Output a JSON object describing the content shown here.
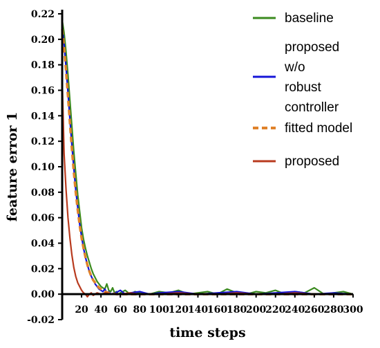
{
  "chart_data": {
    "type": "line",
    "xlabel": "time steps",
    "ylabel": "feature error 1",
    "xlim": [
      0,
      300
    ],
    "ylim": [
      -0.02,
      0.22
    ],
    "x_ticks": [
      20,
      40,
      60,
      80,
      100,
      120,
      140,
      160,
      180,
      200,
      220,
      240,
      260,
      280,
      300
    ],
    "x_tick_labels": [
      "20",
      "40",
      "60",
      "80",
      "100",
      "120",
      "140",
      "160",
      "180",
      "200",
      "220",
      "240",
      "260",
      "280",
      "300"
    ],
    "y_ticks": [
      -0.02,
      0.0,
      0.02,
      0.04,
      0.06,
      0.08,
      0.1,
      0.12,
      0.14,
      0.16,
      0.18,
      0.2,
      0.22
    ],
    "y_tick_labels": [
      "-0.02",
      "0.00",
      "0.02",
      "0.04",
      "0.06",
      "0.08",
      "0.10",
      "0.12",
      "0.14",
      "0.16",
      "0.18",
      "0.20",
      "0.22"
    ],
    "grid": false,
    "legend_position": "right",
    "series": [
      {
        "name": "baseline",
        "color": "#3a8a1e",
        "style": "solid",
        "x": [
          0,
          2,
          4,
          6,
          8,
          10,
          12,
          14,
          16,
          18,
          20,
          22,
          24,
          26,
          28,
          30,
          32,
          34,
          36,
          38,
          40,
          42,
          44,
          46,
          48,
          50,
          52,
          54,
          56,
          58,
          60,
          65,
          70,
          75,
          80,
          90,
          100,
          110,
          120,
          130,
          140,
          150,
          160,
          170,
          180,
          190,
          200,
          210,
          220,
          230,
          240,
          250,
          260,
          270,
          280,
          290,
          300
        ],
        "values": [
          0.215,
          0.205,
          0.19,
          0.172,
          0.152,
          0.132,
          0.112,
          0.095,
          0.078,
          0.065,
          0.052,
          0.043,
          0.036,
          0.03,
          0.025,
          0.02,
          0.016,
          0.013,
          0.01,
          0.008,
          0.006,
          0.005,
          0.004,
          0.008,
          0.003,
          0.002,
          0.005,
          0.001,
          0.002,
          0.0,
          0.001,
          0.003,
          0.0,
          0.002,
          0.001,
          0.0,
          0.002,
          0.001,
          0.003,
          0.0,
          0.001,
          0.002,
          0.0,
          0.004,
          0.001,
          0.0,
          0.002,
          0.001,
          0.003,
          0.0,
          0.002,
          0.001,
          0.005,
          0.0,
          0.001,
          0.002,
          0.0
        ]
      },
      {
        "name": "proposed w/o robust controller",
        "color": "#1515d8",
        "style": "solid",
        "x": [
          0,
          2,
          4,
          6,
          8,
          10,
          12,
          14,
          16,
          18,
          20,
          22,
          24,
          26,
          28,
          30,
          32,
          34,
          36,
          38,
          40,
          42,
          44,
          46,
          48,
          50,
          55,
          60,
          65,
          70,
          80,
          90,
          100,
          120,
          140,
          160,
          180,
          200,
          220,
          240,
          260,
          280,
          300
        ],
        "values": [
          0.21,
          0.196,
          0.178,
          0.158,
          0.137,
          0.117,
          0.099,
          0.082,
          0.068,
          0.055,
          0.045,
          0.036,
          0.029,
          0.023,
          0.018,
          0.014,
          0.011,
          0.008,
          0.006,
          0.004,
          0.003,
          0.002,
          0.004,
          0.001,
          0.002,
          0.0,
          0.001,
          0.003,
          0.0,
          0.001,
          0.002,
          0.0,
          0.001,
          0.002,
          0.0,
          0.001,
          0.002,
          0.0,
          0.001,
          0.002,
          0.0,
          0.001,
          0.0
        ]
      },
      {
        "name": "fitted model",
        "color": "#e0822a",
        "style": "dashed",
        "x": [
          0,
          2,
          4,
          6,
          8,
          10,
          12,
          14,
          16,
          18,
          20,
          22,
          24,
          26,
          28,
          30,
          32,
          34,
          36,
          38,
          40,
          44,
          48,
          52,
          56,
          60,
          70,
          80,
          100,
          120,
          150,
          200,
          250,
          300
        ],
        "values": [
          0.208,
          0.193,
          0.175,
          0.155,
          0.134,
          0.114,
          0.096,
          0.08,
          0.066,
          0.054,
          0.044,
          0.036,
          0.029,
          0.023,
          0.018,
          0.014,
          0.011,
          0.009,
          0.007,
          0.005,
          0.004,
          0.002,
          0.001,
          0.0005,
          0.0,
          0.0,
          0.0,
          0.0,
          0.0,
          0.0,
          0.0,
          0.0,
          0.0,
          0.0
        ]
      },
      {
        "name": "proposed",
        "color": "#b83a1e",
        "style": "solid",
        "x": [
          0,
          2,
          4,
          6,
          8,
          10,
          12,
          14,
          16,
          18,
          20,
          22,
          24,
          26,
          28,
          30,
          32,
          34,
          36,
          40,
          45,
          50,
          60,
          70,
          80,
          100,
          120,
          140,
          160,
          180,
          200,
          220,
          240,
          260,
          280,
          300
        ],
        "values": [
          0.17,
          0.11,
          0.082,
          0.06,
          0.044,
          0.031,
          0.021,
          0.014,
          0.009,
          0.006,
          0.003,
          0.001,
          0.0,
          -0.002,
          0.0,
          0.001,
          -0.001,
          0.0,
          0.001,
          0.0,
          0.001,
          0.0,
          0.0,
          0.001,
          0.0,
          0.0,
          0.001,
          0.0,
          0.0,
          0.001,
          0.0,
          0.0,
          0.001,
          0.0,
          0.0,
          0.0
        ]
      }
    ]
  },
  "legend": {
    "items": [
      {
        "lines": [
          "baseline"
        ],
        "color": "#3a8a1e",
        "style": "solid"
      },
      {
        "lines": [
          "proposed",
          "w/o",
          "robust",
          "controller"
        ],
        "color": "#1515d8",
        "style": "solid"
      },
      {
        "lines": [
          "fitted model"
        ],
        "color": "#e0822a",
        "style": "dashed"
      },
      {
        "lines": [
          "proposed"
        ],
        "color": "#b83a1e",
        "style": "solid"
      }
    ]
  }
}
